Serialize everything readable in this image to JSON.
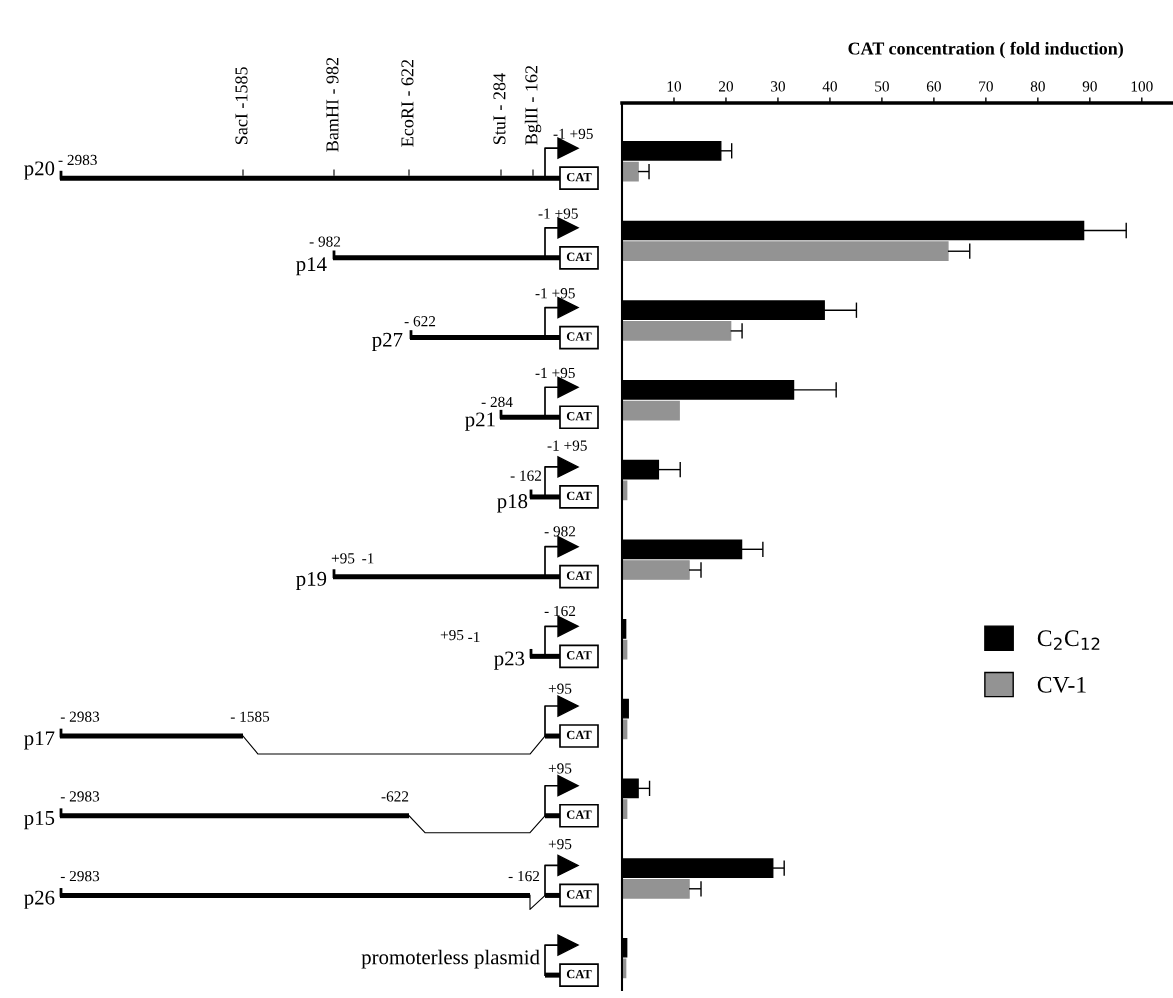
{
  "chart_data": {
    "type": "bar",
    "orientation": "horizontal",
    "title": "CAT concentration ( fold induction)",
    "categories": [
      null,
      null,
      null,
      null,
      null,
      null,
      null,
      null,
      null,
      null,
      null
    ],
    "series": [
      {
        "name": "C$_{2}$C$_{12}$",
        "color": "#000000",
        "values": [
          19.0,
          88.8,
          38.9,
          33.0,
          7.0,
          23.0,
          0.7,
          1.2,
          3.1,
          29.0,
          0.9
        ],
        "errors": [
          [
            19.0,
            21.1
          ],
          [
            88.8,
            97.0
          ],
          [
            38.9,
            45.1
          ],
          [
            33.0,
            41.2
          ],
          [
            7.0,
            11.2
          ],
          [
            23.0,
            27.1
          ],
          null,
          null,
          [
            3.1,
            5.3
          ],
          [
            29.0,
            31.2
          ],
          null
        ]
      },
      {
        "name": "CV-1",
        "color": "#939393",
        "values": [
          3.1,
          62.7,
          20.9,
          11.0,
          0.9,
          12.9,
          0.9,
          0.9,
          0.9,
          12.9,
          0.7
        ],
        "errors": [
          [
            3.1,
            5.2
          ],
          [
            62.7,
            66.9
          ],
          [
            20.9,
            23.1
          ],
          null,
          null,
          [
            12.9,
            15.2
          ],
          null,
          null,
          null,
          [
            12.9,
            15.2
          ],
          null
        ]
      }
    ],
    "xlim": [
      0,
      106
    ],
    "xticks": [
      10,
      20,
      30,
      40,
      50,
      60,
      70,
      80,
      90,
      100
    ],
    "grid": false,
    "legend": "right",
    "annotations": [
      "SacI -1585",
      "BamHI - 982",
      "EcoRI - 622",
      "StuI - 284",
      "BglII - 162",
      "- 2983",
      "-1 +95",
      "- 982",
      "-1 +95",
      "- 622",
      "-1 +95",
      "- 284",
      "-1 +95",
      "- 162",
      "-1 +95",
      "+95",
      "-1",
      "- 982",
      "+95",
      "-1",
      "- 162",
      "- 2983",
      "- 1585",
      "+95",
      "- 2983",
      "-622",
      "+95",
      "- 2983",
      "- 162",
      "+95",
      "CAT",
      "CAT",
      "CAT",
      "CAT",
      "CAT",
      "CAT",
      "CAT",
      "CAT",
      "CAT",
      "CAT",
      "CAT",
      "p20",
      "p14",
      "p27",
      "p21",
      "p18",
      "p19",
      "p23",
      "p17",
      "p15",
      "p26",
      "promoterless plasmid"
    ]
  }
}
